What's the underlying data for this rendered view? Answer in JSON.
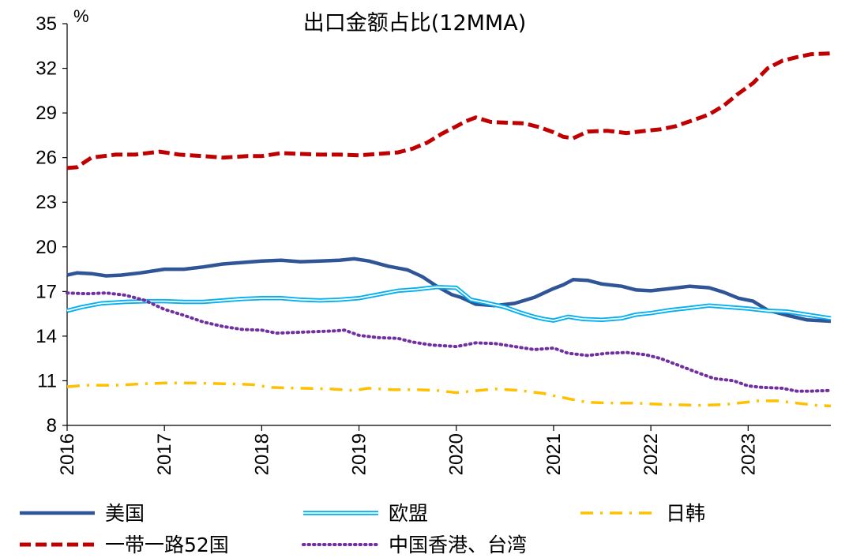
{
  "chart_data": {
    "type": "line",
    "title": "出口金额占比(12MMA)",
    "unit": "%",
    "ylim": [
      8,
      35
    ],
    "yticks": [
      "35",
      "32",
      "29",
      "26",
      "23",
      "20",
      "17",
      "14",
      "11",
      "8"
    ],
    "xlim": [
      2016,
      2023.85
    ],
    "xticks": [
      "2016",
      "2017",
      "2018",
      "2019",
      "2020",
      "2021",
      "2022",
      "2023"
    ],
    "colors": {
      "us": "#2f5597",
      "eu": "#00b0f0",
      "jk": "#ffc000",
      "br": "#c00000",
      "hk": "#7030a0"
    },
    "series": [
      {
        "name": "美国",
        "key": "us",
        "points": [
          [
            2016.0,
            18.1
          ],
          [
            2016.1,
            18.25
          ],
          [
            2016.25,
            18.2
          ],
          [
            2016.4,
            18.05
          ],
          [
            2016.55,
            18.1
          ],
          [
            2016.75,
            18.25
          ],
          [
            2017.0,
            18.5
          ],
          [
            2017.2,
            18.5
          ],
          [
            2017.4,
            18.65
          ],
          [
            2017.6,
            18.85
          ],
          [
            2017.8,
            18.95
          ],
          [
            2018.0,
            19.05
          ],
          [
            2018.2,
            19.1
          ],
          [
            2018.4,
            19.0
          ],
          [
            2018.6,
            19.05
          ],
          [
            2018.8,
            19.1
          ],
          [
            2018.95,
            19.2
          ],
          [
            2019.1,
            19.05
          ],
          [
            2019.3,
            18.7
          ],
          [
            2019.5,
            18.45
          ],
          [
            2019.65,
            18.0
          ],
          [
            2019.8,
            17.35
          ],
          [
            2019.95,
            16.8
          ],
          [
            2020.05,
            16.6
          ],
          [
            2020.2,
            16.15
          ],
          [
            2020.4,
            16.05
          ],
          [
            2020.6,
            16.2
          ],
          [
            2020.8,
            16.6
          ],
          [
            2021.0,
            17.2
          ],
          [
            2021.1,
            17.45
          ],
          [
            2021.2,
            17.8
          ],
          [
            2021.35,
            17.75
          ],
          [
            2021.5,
            17.5
          ],
          [
            2021.7,
            17.35
          ],
          [
            2021.85,
            17.1
          ],
          [
            2022.0,
            17.05
          ],
          [
            2022.2,
            17.2
          ],
          [
            2022.4,
            17.35
          ],
          [
            2022.6,
            17.25
          ],
          [
            2022.75,
            16.95
          ],
          [
            2022.9,
            16.55
          ],
          [
            2023.05,
            16.35
          ],
          [
            2023.2,
            15.75
          ],
          [
            2023.4,
            15.4
          ],
          [
            2023.6,
            15.1
          ],
          [
            2023.85,
            15.0
          ]
        ]
      },
      {
        "name": "欧盟",
        "key": "eu",
        "points": [
          [
            2016.0,
            15.7
          ],
          [
            2016.15,
            15.95
          ],
          [
            2016.35,
            16.2
          ],
          [
            2016.6,
            16.3
          ],
          [
            2016.85,
            16.35
          ],
          [
            2017.0,
            16.35
          ],
          [
            2017.2,
            16.3
          ],
          [
            2017.4,
            16.3
          ],
          [
            2017.6,
            16.4
          ],
          [
            2017.8,
            16.5
          ],
          [
            2018.0,
            16.55
          ],
          [
            2018.2,
            16.55
          ],
          [
            2018.4,
            16.45
          ],
          [
            2018.6,
            16.4
          ],
          [
            2018.8,
            16.45
          ],
          [
            2019.0,
            16.55
          ],
          [
            2019.2,
            16.8
          ],
          [
            2019.4,
            17.05
          ],
          [
            2019.6,
            17.15
          ],
          [
            2019.8,
            17.3
          ],
          [
            2020.0,
            17.25
          ],
          [
            2020.15,
            16.45
          ],
          [
            2020.3,
            16.25
          ],
          [
            2020.5,
            15.95
          ],
          [
            2020.65,
            15.6
          ],
          [
            2020.8,
            15.3
          ],
          [
            2020.9,
            15.15
          ],
          [
            2021.0,
            15.05
          ],
          [
            2021.15,
            15.3
          ],
          [
            2021.3,
            15.15
          ],
          [
            2021.5,
            15.1
          ],
          [
            2021.7,
            15.2
          ],
          [
            2021.85,
            15.45
          ],
          [
            2022.0,
            15.55
          ],
          [
            2022.2,
            15.75
          ],
          [
            2022.4,
            15.9
          ],
          [
            2022.6,
            16.05
          ],
          [
            2022.8,
            15.95
          ],
          [
            2023.0,
            15.85
          ],
          [
            2023.2,
            15.7
          ],
          [
            2023.4,
            15.65
          ],
          [
            2023.6,
            15.45
          ],
          [
            2023.85,
            15.2
          ]
        ]
      },
      {
        "name": "日韩",
        "key": "jk",
        "points": [
          [
            2016.0,
            10.6
          ],
          [
            2016.2,
            10.7
          ],
          [
            2016.5,
            10.7
          ],
          [
            2016.8,
            10.8
          ],
          [
            2017.0,
            10.85
          ],
          [
            2017.3,
            10.85
          ],
          [
            2017.6,
            10.8
          ],
          [
            2017.9,
            10.75
          ],
          [
            2018.1,
            10.55
          ],
          [
            2018.4,
            10.5
          ],
          [
            2018.7,
            10.45
          ],
          [
            2018.95,
            10.35
          ],
          [
            2019.1,
            10.5
          ],
          [
            2019.35,
            10.4
          ],
          [
            2019.6,
            10.4
          ],
          [
            2019.8,
            10.35
          ],
          [
            2020.0,
            10.2
          ],
          [
            2020.15,
            10.3
          ],
          [
            2020.4,
            10.45
          ],
          [
            2020.65,
            10.35
          ],
          [
            2020.9,
            10.15
          ],
          [
            2021.0,
            10.0
          ],
          [
            2021.15,
            9.8
          ],
          [
            2021.35,
            9.55
          ],
          [
            2021.6,
            9.5
          ],
          [
            2021.85,
            9.5
          ],
          [
            2022.0,
            9.45
          ],
          [
            2022.2,
            9.4
          ],
          [
            2022.5,
            9.35
          ],
          [
            2022.75,
            9.4
          ],
          [
            2022.9,
            9.5
          ],
          [
            2023.1,
            9.65
          ],
          [
            2023.3,
            9.65
          ],
          [
            2023.5,
            9.5
          ],
          [
            2023.7,
            9.35
          ],
          [
            2023.85,
            9.3
          ]
        ]
      },
      {
        "name": "一带一路52国",
        "key": "br",
        "points": [
          [
            2016.0,
            25.3
          ],
          [
            2016.1,
            25.35
          ],
          [
            2016.25,
            26.0
          ],
          [
            2016.5,
            26.2
          ],
          [
            2016.7,
            26.2
          ],
          [
            2016.95,
            26.4
          ],
          [
            2017.15,
            26.2
          ],
          [
            2017.4,
            26.1
          ],
          [
            2017.6,
            26.0
          ],
          [
            2017.85,
            26.1
          ],
          [
            2018.0,
            26.1
          ],
          [
            2018.2,
            26.3
          ],
          [
            2018.4,
            26.25
          ],
          [
            2018.6,
            26.2
          ],
          [
            2018.8,
            26.2
          ],
          [
            2019.0,
            26.15
          ],
          [
            2019.2,
            26.25
          ],
          [
            2019.4,
            26.35
          ],
          [
            2019.55,
            26.6
          ],
          [
            2019.7,
            27.0
          ],
          [
            2019.85,
            27.6
          ],
          [
            2020.0,
            28.1
          ],
          [
            2020.1,
            28.45
          ],
          [
            2020.2,
            28.7
          ],
          [
            2020.35,
            28.4
          ],
          [
            2020.5,
            28.35
          ],
          [
            2020.7,
            28.3
          ],
          [
            2020.85,
            28.05
          ],
          [
            2021.0,
            27.7
          ],
          [
            2021.1,
            27.4
          ],
          [
            2021.2,
            27.3
          ],
          [
            2021.35,
            27.75
          ],
          [
            2021.55,
            27.8
          ],
          [
            2021.75,
            27.65
          ],
          [
            2021.95,
            27.8
          ],
          [
            2022.1,
            27.9
          ],
          [
            2022.25,
            28.1
          ],
          [
            2022.45,
            28.55
          ],
          [
            2022.6,
            28.9
          ],
          [
            2022.75,
            29.5
          ],
          [
            2022.9,
            30.3
          ],
          [
            2023.05,
            31.0
          ],
          [
            2023.2,
            32.0
          ],
          [
            2023.35,
            32.5
          ],
          [
            2023.5,
            32.75
          ],
          [
            2023.65,
            32.95
          ],
          [
            2023.85,
            33.0
          ]
        ]
      },
      {
        "name": "中国香港、台湾",
        "key": "hk",
        "points": [
          [
            2016.0,
            16.9
          ],
          [
            2016.2,
            16.85
          ],
          [
            2016.4,
            16.9
          ],
          [
            2016.6,
            16.75
          ],
          [
            2016.8,
            16.4
          ],
          [
            2017.0,
            15.8
          ],
          [
            2017.2,
            15.4
          ],
          [
            2017.4,
            14.95
          ],
          [
            2017.6,
            14.65
          ],
          [
            2017.8,
            14.45
          ],
          [
            2018.0,
            14.4
          ],
          [
            2018.15,
            14.2
          ],
          [
            2018.35,
            14.25
          ],
          [
            2018.55,
            14.3
          ],
          [
            2018.75,
            14.35
          ],
          [
            2018.85,
            14.4
          ],
          [
            2019.0,
            14.05
          ],
          [
            2019.2,
            13.9
          ],
          [
            2019.4,
            13.85
          ],
          [
            2019.55,
            13.6
          ],
          [
            2019.75,
            13.4
          ],
          [
            2020.0,
            13.3
          ],
          [
            2020.2,
            13.55
          ],
          [
            2020.4,
            13.5
          ],
          [
            2020.6,
            13.3
          ],
          [
            2020.8,
            13.1
          ],
          [
            2021.0,
            13.2
          ],
          [
            2021.15,
            12.85
          ],
          [
            2021.35,
            12.7
          ],
          [
            2021.55,
            12.85
          ],
          [
            2021.75,
            12.9
          ],
          [
            2021.95,
            12.75
          ],
          [
            2022.1,
            12.5
          ],
          [
            2022.3,
            12.0
          ],
          [
            2022.5,
            11.5
          ],
          [
            2022.65,
            11.15
          ],
          [
            2022.85,
            11.0
          ],
          [
            2023.0,
            10.65
          ],
          [
            2023.15,
            10.55
          ],
          [
            2023.35,
            10.5
          ],
          [
            2023.5,
            10.3
          ],
          [
            2023.65,
            10.3
          ],
          [
            2023.85,
            10.35
          ]
        ]
      }
    ]
  }
}
